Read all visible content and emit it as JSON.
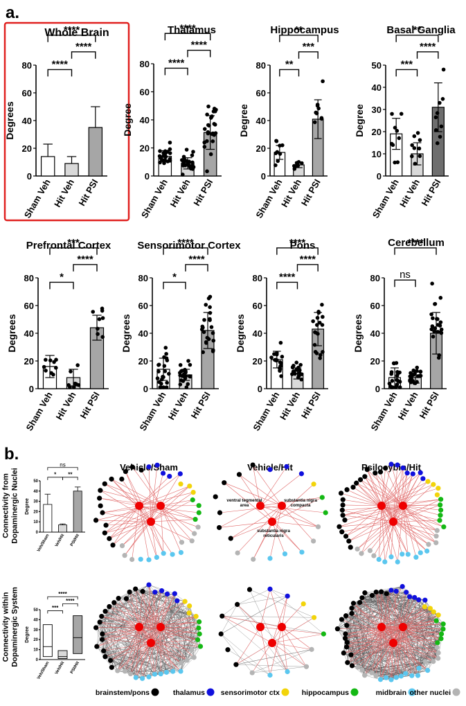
{
  "panel_labels": {
    "a": "a.",
    "b": "b."
  },
  "colors": {
    "sham_fill": "#ffffff",
    "hitveh_fill": "#d9d9d9",
    "psi_fill": "#a6a6a6",
    "psi_fill_dark": "#6e6e6e",
    "highlight_box": "#e0201f",
    "edge_red": "#e06666",
    "edge_grey": "#555555",
    "hub_red": "#ee0000",
    "brainstem": "#000000",
    "thalamus": "#1010dd",
    "sensorimotor": "#f2d40a",
    "hippocampus": "#14b814",
    "midbrain": "#5bc7ef",
    "other": "#b4b4b4"
  },
  "chart_data": [
    {
      "id": "whole-brain",
      "type": "bar",
      "title": "Whole Brain",
      "ylabel": "Degrees",
      "ylim": [
        0,
        80
      ],
      "yticks": [
        0,
        20,
        40,
        60,
        80
      ],
      "categories": [
        "Sham Veh",
        "Hit Veh",
        "Hit PSI"
      ],
      "values": [
        14,
        9,
        35
      ],
      "errors": [
        9,
        5,
        15
      ],
      "show_points": false,
      "highlight": true,
      "comparisons": [
        {
          "from": 0,
          "to": 2,
          "label": "****"
        },
        {
          "from": 1,
          "to": 2,
          "label": "****"
        },
        {
          "from": 0,
          "to": 1,
          "label": "****"
        }
      ]
    },
    {
      "id": "thalamus",
      "type": "bar",
      "title": "Thalamus",
      "ylabel": "Degree",
      "ylim": [
        0,
        80
      ],
      "yticks": [
        0,
        20,
        40,
        60,
        80
      ],
      "categories": [
        "Sham Veh",
        "Hit Veh",
        "Hit PSI"
      ],
      "values": [
        14,
        9,
        31
      ],
      "errors": [
        4,
        4,
        12
      ],
      "show_points": true,
      "n_points": [
        24,
        24,
        26
      ],
      "comparisons": [
        {
          "from": 0,
          "to": 2,
          "label": "****"
        },
        {
          "from": 1,
          "to": 2,
          "label": "****"
        },
        {
          "from": 0,
          "to": 1,
          "label": "****"
        }
      ]
    },
    {
      "id": "hippocampus",
      "type": "bar",
      "title": "Hippocampus",
      "ylabel": "Degree",
      "ylim": [
        0,
        80
      ],
      "yticks": [
        0,
        20,
        40,
        60,
        80
      ],
      "categories": [
        "Sham Veh",
        "Hit Veh",
        "Hit PSI"
      ],
      "values": [
        17,
        8,
        41
      ],
      "errors": [
        5,
        2,
        14
      ],
      "show_points": true,
      "n_points": [
        9,
        8,
        9
      ],
      "comparisons": [
        {
          "from": 0,
          "to": 2,
          "label": "**"
        },
        {
          "from": 1,
          "to": 2,
          "label": "***"
        },
        {
          "from": 0,
          "to": 1,
          "label": "**"
        }
      ]
    },
    {
      "id": "basal-ganglia",
      "type": "bar",
      "title": "Basal Ganglia",
      "ylabel": "Degree",
      "ylim": [
        0,
        50
      ],
      "yticks": [
        0,
        10,
        20,
        30,
        40,
        50
      ],
      "categories": [
        "Sham Veh",
        "Hit Veh",
        "Hit PSI"
      ],
      "values": [
        19,
        10,
        31
      ],
      "errors": [
        7,
        5,
        11
      ],
      "show_points": true,
      "n_points": [
        9,
        9,
        9
      ],
      "dark_psi": true,
      "comparisons": [
        {
          "from": 0,
          "to": 2,
          "label": "**"
        },
        {
          "from": 1,
          "to": 2,
          "label": "****"
        },
        {
          "from": 0,
          "to": 1,
          "label": "***"
        }
      ]
    },
    {
      "id": "prefrontal-cortex",
      "type": "bar",
      "title": "Prefrontal Cortex",
      "ylabel": "Degrees",
      "ylim": [
        0,
        80
      ],
      "yticks": [
        0,
        20,
        40,
        60,
        80
      ],
      "categories": [
        "Sham Veh",
        "Hit Veh",
        "Hit PSI"
      ],
      "values": [
        16,
        8,
        44
      ],
      "errors": [
        8,
        6,
        9
      ],
      "show_points": true,
      "n_points": [
        9,
        8,
        8
      ],
      "comparisons": [
        {
          "from": 0,
          "to": 2,
          "label": "***"
        },
        {
          "from": 1,
          "to": 2,
          "label": "****"
        },
        {
          "from": 0,
          "to": 1,
          "label": "*"
        }
      ]
    },
    {
      "id": "sensorimotor-cortex",
      "type": "bar",
      "title": "Sensorimotor Cortex",
      "ylabel": "Degrees",
      "ylim": [
        0,
        80
      ],
      "yticks": [
        0,
        20,
        40,
        60,
        80
      ],
      "categories": [
        "Sham Veh",
        "Hit Veh",
        "Hit PSI"
      ],
      "values": [
        14,
        10,
        42
      ],
      "errors": [
        8,
        4,
        13
      ],
      "show_points": true,
      "n_points": [
        22,
        22,
        22
      ],
      "comparisons": [
        {
          "from": 0,
          "to": 2,
          "label": "****"
        },
        {
          "from": 1,
          "to": 2,
          "label": "****"
        },
        {
          "from": 0,
          "to": 1,
          "label": "*"
        }
      ]
    },
    {
      "id": "pons",
      "type": "bar",
      "title": "Pons",
      "ylabel": "Degrees",
      "ylim": [
        0,
        80
      ],
      "yticks": [
        0,
        20,
        40,
        60,
        80
      ],
      "categories": [
        "Sham Veh",
        "Hit Veh",
        "Hit PSI"
      ],
      "values": [
        21,
        11,
        43
      ],
      "errors": [
        6,
        4,
        12
      ],
      "show_points": true,
      "n_points": [
        18,
        18,
        18
      ],
      "comparisons": [
        {
          "from": 0,
          "to": 2,
          "label": "****"
        },
        {
          "from": 1,
          "to": 2,
          "label": "****"
        },
        {
          "from": 0,
          "to": 1,
          "label": "****"
        }
      ]
    },
    {
      "id": "cerebellum",
      "type": "bar",
      "title": "Cerebellum",
      "ylabel": "Degrees",
      "ylim": [
        0,
        80
      ],
      "yticks": [
        0,
        20,
        40,
        60,
        80
      ],
      "categories": [
        "Sham Veh",
        "Hit Veh",
        "Hit PSI"
      ],
      "values": [
        8,
        8,
        40
      ],
      "errors": [
        7,
        4,
        15
      ],
      "show_points": true,
      "n_points": [
        22,
        22,
        22
      ],
      "comparisons": [
        {
          "from": 0,
          "to": 2,
          "label": "****"
        },
        {
          "from": 0,
          "to": 1,
          "label": "ns"
        }
      ]
    },
    {
      "id": "connectivity-from-da",
      "type": "bar",
      "title": "Connectivity from Dopaminergic Nuclei",
      "ylabel": "Degree",
      "ylim": [
        0,
        50
      ],
      "yticks": [
        0,
        10,
        20,
        30,
        40,
        50
      ],
      "categories": [
        "Veh/Sham",
        "Veh/Hit",
        "PSI/Hit"
      ],
      "values": [
        27,
        7,
        40
      ],
      "errors": [
        10,
        1,
        4
      ],
      "show_points": false,
      "comparisons": [
        {
          "from": 0,
          "to": 2,
          "label": "ns"
        },
        {
          "from": 0,
          "to": 1,
          "label": "*"
        },
        {
          "from": 1,
          "to": 2,
          "label": "**"
        }
      ]
    },
    {
      "id": "connectivity-within-da",
      "type": "box",
      "title": "Connectivity within Dopaminergic System",
      "ylabel": "Degree",
      "ylim": [
        0,
        50
      ],
      "yticks": [
        0,
        10,
        20,
        30,
        40,
        50
      ],
      "categories": [
        "Veh/Sham",
        "Veh/Hit",
        "PSI/Hit"
      ],
      "boxes": [
        {
          "min": 3,
          "q1": 3,
          "median": 13,
          "q3": 35,
          "max": 35
        },
        {
          "min": 1,
          "q1": 1,
          "median": 3,
          "q3": 9,
          "max": 9
        },
        {
          "min": 6,
          "q1": 6,
          "median": 22,
          "q3": 44,
          "max": 44
        }
      ],
      "comparisons": [
        {
          "from": 0,
          "to": 2,
          "label": "****"
        },
        {
          "from": 1,
          "to": 2,
          "label": "****"
        },
        {
          "from": 0,
          "to": 1,
          "label": "***"
        }
      ]
    }
  ],
  "networks": {
    "titles": [
      "Vehicle/Sham",
      "Vehicle/Hit",
      "Psilocybin/Hit"
    ],
    "hub_labels": [
      "ventral tegmental area",
      "substantia nigra compacta",
      "substantia nigra reticularis"
    ],
    "row_labels": [
      "Connectivity from Dopaminergic Nuclei",
      "Connectivity within Dopaminergic System"
    ]
  },
  "legend": [
    {
      "label": "brainstem/pons",
      "color": "#000000"
    },
    {
      "label": "thalamus",
      "color": "#1010dd"
    },
    {
      "label": "sensorimotor ctx",
      "color": "#f2d40a"
    },
    {
      "label": "hippocampus",
      "color": "#14b814"
    },
    {
      "label": "midbrain",
      "color": "#5bc7ef"
    },
    {
      "label": "other nuclei",
      "color": "#b4b4b4"
    }
  ]
}
